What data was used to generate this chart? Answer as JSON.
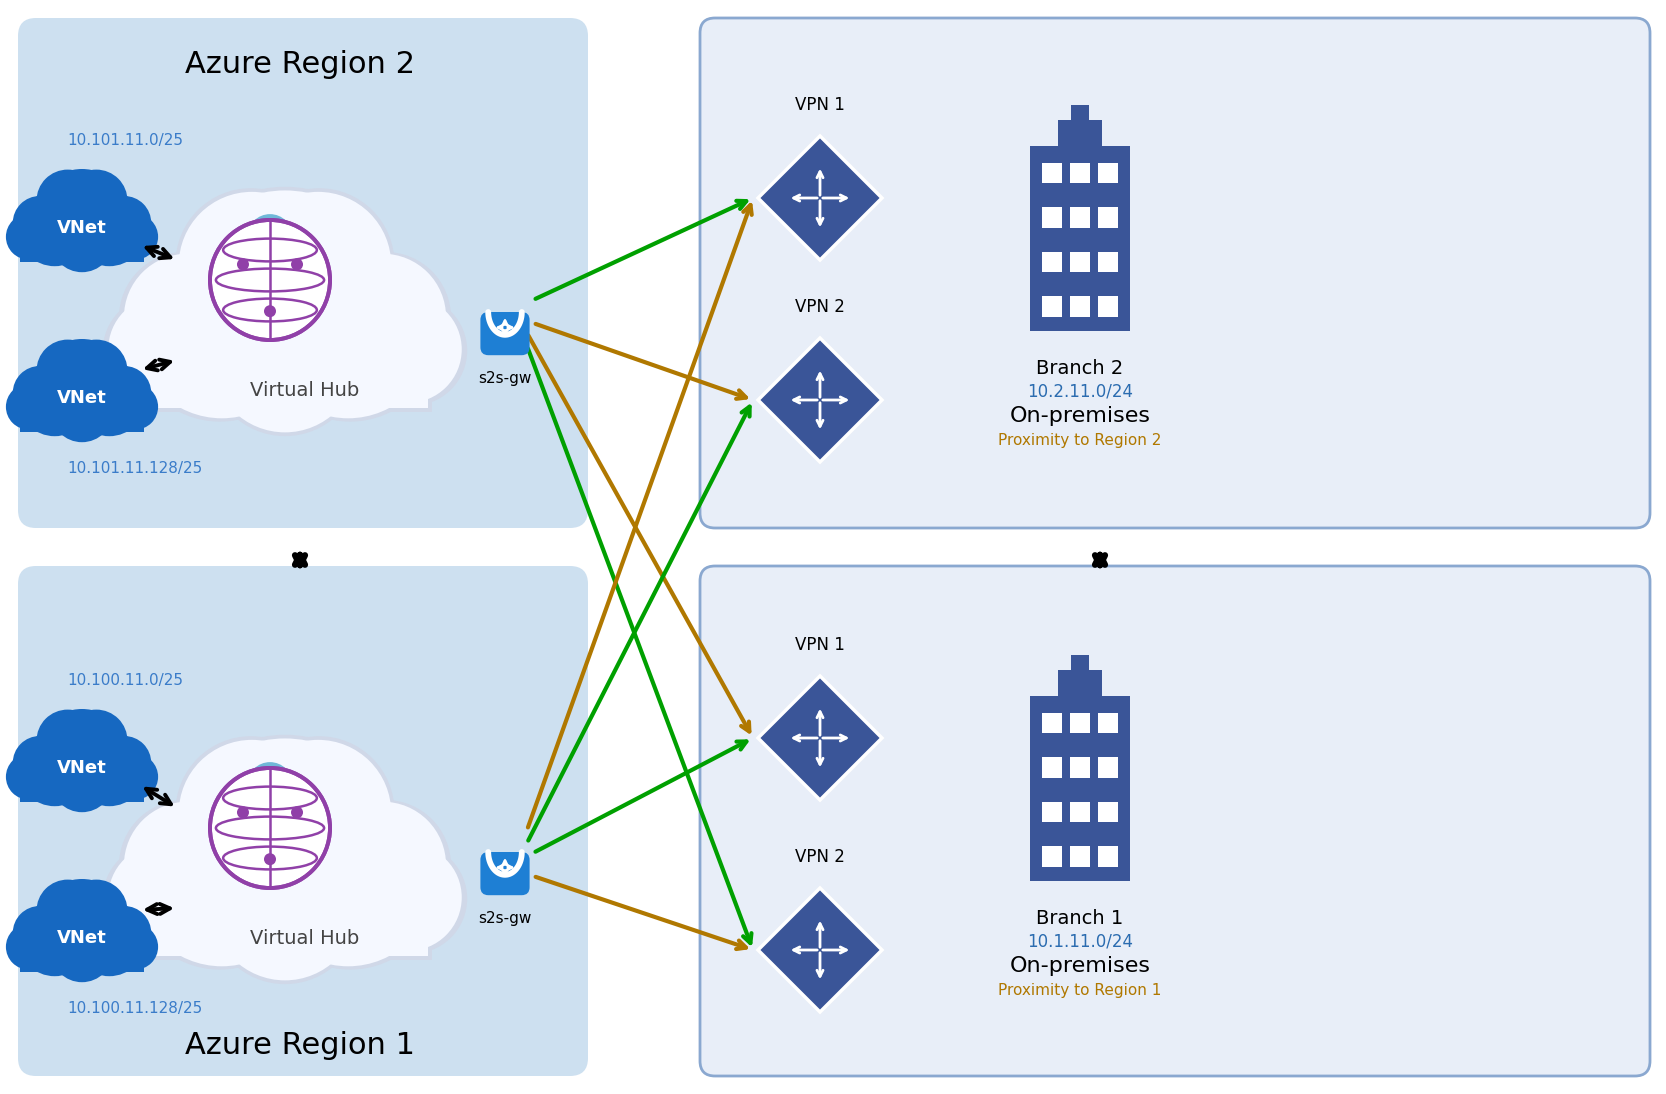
{
  "bg_color": "#ffffff",
  "azure_bg": "#cde0f0",
  "azure_region2_label": "Azure Region 2",
  "azure_region1_label": "Azure Region 1",
  "branch2_bg": "#e8eef8",
  "branch1_bg": "#e8eef8",
  "branch_border": "#8aa8d0",
  "vnet_color": "#1668c1",
  "vpn_diamond_color": "#3a5598",
  "lock_color": "#1e7fd4",
  "hub_cloud_outer": "#d0d8e8",
  "hub_cloud_inner": "#f5f8ff",
  "globe_color": "#9040a8",
  "globe_bg_cloud": "#70b8d8",
  "arrow_green": "#00a000",
  "arrow_gold": "#b07800",
  "arrow_black": "#111111",
  "vnet_top2_label": "10.101.11.0/25",
  "vnet_bot2_label": "10.101.11.128/25",
  "vnet_top1_label": "10.100.11.0/25",
  "vnet_bot1_label": "10.100.11.128/25",
  "branch2_ip": "10.2.11.0/24",
  "branch1_ip": "10.1.11.0/24",
  "branch2_name": "Branch 2",
  "branch1_name": "Branch 1",
  "onprem_label": "On-premises",
  "proximity2_label": "Proximity to Region 2",
  "proximity1_label": "Proximity to Region 1",
  "s2sgw_label": "s2s-gw",
  "virtual_hub_label": "Virtual Hub",
  "vpn1_label": "VPN 1",
  "vpn2_label": "VPN 2"
}
